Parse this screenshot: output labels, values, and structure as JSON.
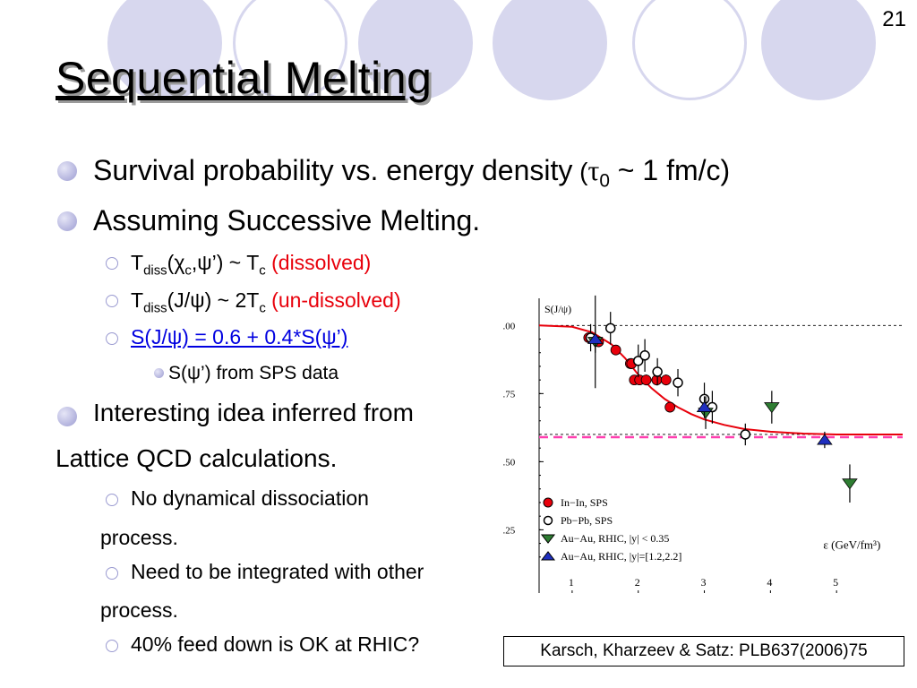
{
  "slide_number": "21",
  "title": "Sequential Melting",
  "bullets": {
    "b1": {
      "text": "Survival probability vs. energy density",
      "paren_open": " (",
      "tau": "τ",
      "sub0": "0",
      "paren_rest": " ~ 1 fm/c)"
    },
    "b2": {
      "text": "Assuming Successive Melting."
    },
    "s1": {
      "t": "T",
      "diss": "diss",
      "open": "(",
      "chi": "χ",
      "c": "c",
      "psi": ",ψ’) ~ T",
      "c2": "c",
      "red": " (dissolved)"
    },
    "s2": {
      "t": "T",
      "diss": "diss",
      "rest": "(J/ψ) ~ 2T",
      "c": "c",
      "red": " (un-dissolved)"
    },
    "s3": {
      "link": "S(J/ψ) = 0.6 + 0.4*S(ψ’)"
    },
    "s3a": {
      "text": "S(ψ’) from SPS data"
    },
    "b3": {
      "line1": "Interesting idea inferred from",
      "line2": "Lattice QCD calculations."
    },
    "s4": {
      "line1": "No dynamical dissociation",
      "line2": "process."
    },
    "s5": {
      "line1": " Need to be integrated with other",
      "line2": "process."
    },
    "s6": {
      "text": "40% feed down is OK at RHIC?"
    }
  },
  "caption": "Karsch, Kharzeev & Satz: PLB637(2006)75",
  "colors": {
    "bg_circles": "#d7d7ee",
    "red_text": "#e8000b",
    "link": "#0000e0",
    "fit_curve": "#e8000b",
    "pink_line": "#ff3fb0",
    "green": "#2e7d32",
    "blue": "#1f2fbf"
  },
  "chart_data": {
    "type": "scatter",
    "ylabel": "S(J/ψ)",
    "xlabel": "ε (GeV/fm³)",
    "xlim": [
      0.5,
      6.0
    ],
    "ylim": [
      0.1,
      1.08
    ],
    "yticks": [
      1.0,
      0.75,
      0.5,
      0.25
    ],
    "ytick_labels": [
      "1.00",
      "0.75",
      "0.50",
      "0.25"
    ],
    "xticks": [
      1,
      2,
      3,
      4,
      5
    ],
    "xtick_labels": [
      "1",
      "2",
      "3",
      "4",
      "5"
    ],
    "reference_lines": [
      {
        "y": 1.0,
        "style": "dashed",
        "color": "#000000"
      },
      {
        "y": 0.6,
        "style": "dashed",
        "color": "#000000"
      }
    ],
    "pink_line": {
      "y": 0.59
    },
    "series": [
      {
        "name": "In−In, SPS",
        "marker": "filled-circle",
        "color": "#e8000b",
        "x": [
          1.25,
          1.4,
          1.66,
          1.88,
          1.9,
          1.94,
          2.02,
          2.12,
          2.28,
          2.42,
          2.48
        ],
        "y": [
          0.955,
          0.94,
          0.91,
          0.86,
          0.86,
          0.8,
          0.8,
          0.8,
          0.8,
          0.8,
          0.7
        ],
        "err": [
          0.01,
          0.01,
          0.01,
          0.02,
          0.02,
          0.01,
          0.01,
          0.02,
          0.02,
          0.02,
          0.015
        ]
      },
      {
        "name": "Pb−Pb, SPS",
        "marker": "open-circle",
        "color": "#000000",
        "x": [
          1.28,
          1.58,
          2.0,
          2.1,
          2.29,
          2.6,
          3.0,
          3.12,
          3.62
        ],
        "y": [
          0.955,
          0.99,
          0.87,
          0.89,
          0.83,
          0.79,
          0.73,
          0.7,
          0.6
        ],
        "err": [
          0.05,
          0.06,
          0.06,
          0.06,
          0.05,
          0.05,
          0.06,
          0.06,
          0.04
        ]
      },
      {
        "name": "Au−Au, RHIC, |y| < 0.35",
        "marker": "triangle-down",
        "color": "#2e7d32",
        "x": [
          1.35,
          3.02,
          4.02,
          5.2
        ],
        "y": [
          0.94,
          0.68,
          0.7,
          0.42
        ],
        "err": [
          0.17,
          0.06,
          0.06,
          0.07
        ]
      },
      {
        "name": "Au−Au, RHIC, |y|=[1.2,2.2]",
        "marker": "triangle-up",
        "color": "#1f2fbf",
        "x": [
          1.35,
          3.0,
          4.82
        ],
        "y": [
          0.95,
          0.7,
          0.58
        ],
        "err": [
          0.05,
          0.04,
          0.03
        ]
      }
    ],
    "fit_curve": {
      "color": "#e8000b",
      "x": [
        0.5,
        1.0,
        1.3,
        1.6,
        1.8,
        2.0,
        2.2,
        2.4,
        2.6,
        2.8,
        3.0,
        3.3,
        3.6,
        4.0,
        4.5,
        5.0,
        5.5,
        6.0
      ],
      "y": [
        1.0,
        0.995,
        0.975,
        0.93,
        0.88,
        0.82,
        0.77,
        0.73,
        0.7,
        0.675,
        0.655,
        0.635,
        0.62,
        0.61,
        0.603,
        0.6,
        0.6,
        0.6
      ]
    }
  }
}
